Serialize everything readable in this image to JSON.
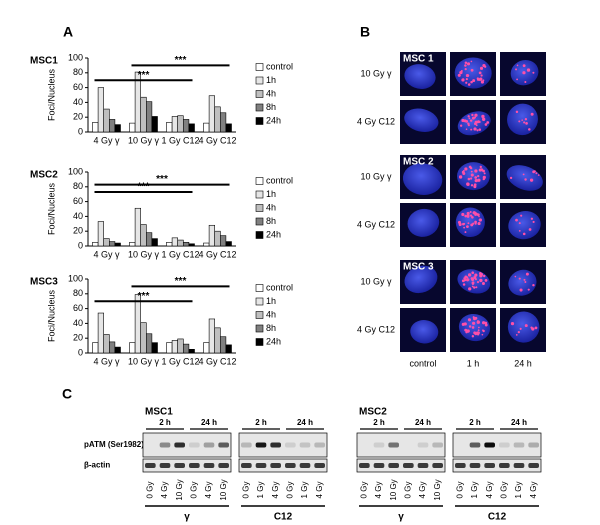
{
  "panel_a": {
    "label": "A"
  },
  "chart_data": [
    {
      "type": "bar",
      "title": "MSC1",
      "y_label": "Foci/Nucleus",
      "categories": [
        "4 Gy γ",
        "10 Gy γ",
        "1 Gy C12",
        "4 Gy C12"
      ],
      "series": [
        {
          "name": "control",
          "color": "#ffffff",
          "values": [
            13,
            12,
            13,
            12
          ]
        },
        {
          "name": "1h",
          "color": "#e6e6e6",
          "values": [
            60,
            81,
            21,
            49
          ]
        },
        {
          "name": "4h",
          "color": "#bfbfbf",
          "values": [
            31,
            47,
            22,
            34
          ]
        },
        {
          "name": "8h",
          "color": "#808080",
          "values": [
            17,
            41,
            17,
            26
          ]
        },
        {
          "name": "24h",
          "color": "#000000",
          "values": [
            10,
            21,
            11,
            11
          ]
        }
      ],
      "ylim": [
        0,
        100
      ],
      "yticks": [
        0,
        20,
        40,
        60,
        80,
        100
      ],
      "annotations": [
        "***",
        "***"
      ]
    },
    {
      "type": "bar",
      "title": "MSC2",
      "y_label": "Foci/Nucleus",
      "categories": [
        "4 Gy γ",
        "10 Gy γ",
        "1 Gy C12",
        "4 Gy C12"
      ],
      "series": [
        {
          "name": "control",
          "color": "#ffffff",
          "values": [
            5,
            5,
            5,
            4
          ]
        },
        {
          "name": "1h",
          "color": "#e6e6e6",
          "values": [
            33,
            51,
            11,
            28
          ]
        },
        {
          "name": "4h",
          "color": "#bfbfbf",
          "values": [
            10,
            29,
            8,
            20
          ]
        },
        {
          "name": "8h",
          "color": "#808080",
          "values": [
            6,
            18,
            5,
            14
          ]
        },
        {
          "name": "24h",
          "color": "#000000",
          "values": [
            4,
            10,
            3,
            6
          ]
        }
      ],
      "ylim": [
        0,
        100
      ],
      "yticks": [
        0,
        20,
        40,
        60,
        80,
        100
      ],
      "annotations": [
        "***",
        "***"
      ]
    },
    {
      "type": "bar",
      "title": "MSC3",
      "y_label": "Foci/Nucleus",
      "categories": [
        "4 Gy γ",
        "10 Gy γ",
        "1 Gy C12",
        "4 Gy C12"
      ],
      "series": [
        {
          "name": "control",
          "color": "#ffffff",
          "values": [
            14,
            14,
            14,
            14
          ]
        },
        {
          "name": "1h",
          "color": "#e6e6e6",
          "values": [
            54,
            79,
            17,
            46
          ]
        },
        {
          "name": "4h",
          "color": "#bfbfbf",
          "values": [
            25,
            41,
            19,
            34
          ]
        },
        {
          "name": "8h",
          "color": "#808080",
          "values": [
            15,
            26,
            12,
            22
          ]
        },
        {
          "name": "24h",
          "color": "#000000",
          "values": [
            8,
            14,
            5,
            11
          ]
        }
      ],
      "ylim": [
        0,
        100
      ],
      "yticks": [
        0,
        20,
        40,
        60,
        80,
        100
      ],
      "annotations": [
        "***",
        "***"
      ]
    }
  ],
  "panel_b": {
    "label": "B",
    "samples": [
      {
        "name": "MSC 1",
        "rows": [
          "10 Gy γ",
          "4 Gy C12"
        ]
      },
      {
        "name": "MSC 2",
        "rows": [
          "10 Gy γ",
          "4 Gy C12"
        ]
      },
      {
        "name": "MSC 3",
        "rows": [
          "10 Gy γ",
          "4 Gy C12"
        ]
      }
    ],
    "columns": [
      "control",
      "1 h",
      "24 h"
    ]
  },
  "panel_c": {
    "label": "C",
    "rows": [
      "pATM (Ser1982)",
      "β-actin"
    ],
    "blots": [
      {
        "name": "MSC1",
        "groups": [
          {
            "name": "γ",
            "times": [
              "2 h",
              "24 h"
            ],
            "lanes": [
              "0 Gy",
              "4 Gy",
              "10 Gy",
              "0 Gy",
              "4 Gy",
              "10 Gy"
            ]
          },
          {
            "name": "C12",
            "times": [
              "2 h",
              "24 h"
            ],
            "lanes": [
              "0 Gy",
              "1 Gy",
              "4 Gy",
              "0 Gy",
              "1 Gy",
              "4 Gy"
            ]
          }
        ]
      },
      {
        "name": "MSC2",
        "groups": [
          {
            "name": "γ",
            "times": [
              "2 h",
              "24 h"
            ],
            "lanes": [
              "0 Gy",
              "4 Gy",
              "10 Gy",
              "0 Gy",
              "4 Gy",
              "10 Gy"
            ]
          },
          {
            "name": "C12",
            "times": [
              "2 h",
              "24 h"
            ],
            "lanes": [
              "0 Gy",
              "1 Gy",
              "4 Gy",
              "0 Gy",
              "1 Gy",
              "4 Gy"
            ]
          }
        ]
      }
    ]
  }
}
